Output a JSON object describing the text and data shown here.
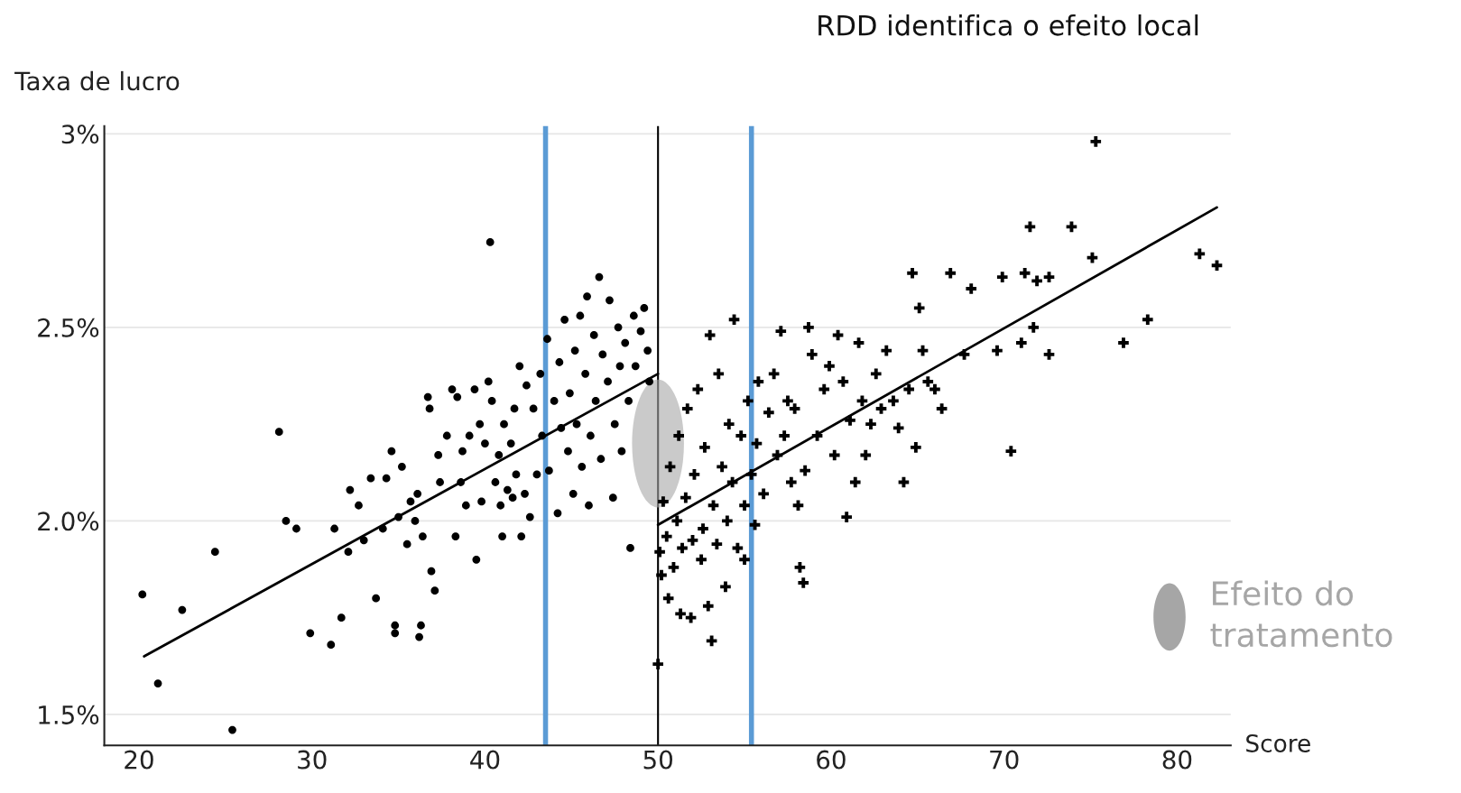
{
  "chart_data": {
    "type": "scatter",
    "title": "RDD identifica o efeito local",
    "xlabel": "Score",
    "ylabel": "Taxa de lucro",
    "annotations": [
      "Efeito do tratamento"
    ],
    "xlim": [
      18,
      83.1
    ],
    "xticks": [
      20,
      30,
      40,
      50,
      60,
      70,
      80
    ],
    "ylim": [
      1.42,
      3.02
    ],
    "yticks": [
      {
        "value": 1.5,
        "label": "1.5%"
      },
      {
        "value": 2.0,
        "label": "2.0%"
      },
      {
        "value": 2.5,
        "label": "2.5%"
      },
      {
        "value": 3,
        "label": "3%"
      }
    ],
    "grid": "y",
    "legend": false,
    "ref_lines": [
      {
        "axis": "x",
        "value": 50,
        "color": "#000000"
      },
      {
        "axis": "x",
        "value": 43.5,
        "color": "#5b9bd5"
      },
      {
        "axis": "x",
        "value": 55.4,
        "color": "#5b9bd5"
      }
    ],
    "series": [
      {
        "marker": "circle",
        "color": "#000000",
        "x": [
          20.2,
          21.1,
          22.5,
          24.4,
          25.4,
          28.1,
          28.5,
          29.1,
          29.9,
          31.1,
          31.3,
          31.7,
          32.2,
          32.7,
          32.1,
          33.0,
          33.4,
          33.7,
          34.1,
          34.3,
          34.6,
          34.8,
          34.8,
          35.0,
          35.2,
          35.5,
          35.7,
          35.96,
          36.1,
          36.3,
          36.2,
          36.4,
          36.7,
          36.8,
          36.9,
          37.1,
          37.3,
          37.4,
          37.8,
          38.1,
          38.3,
          38.4,
          38.6,
          38.7,
          38.9,
          39.1,
          39.4,
          39.5,
          39.7,
          39.8,
          40.0,
          40.2,
          40.3,
          40.4,
          40.6,
          40.8,
          40.9,
          41.0,
          41.1,
          41.3,
          41.5,
          41.6,
          41.7,
          41.8,
          42.0,
          42.1,
          42.3,
          42.4,
          42.6,
          42.8,
          43.0,
          43.2,
          43.3,
          43.6,
          43.7,
          44.0,
          44.2,
          44.3,
          44.4,
          44.6,
          44.8,
          44.9,
          45.1,
          45.2,
          45.3,
          45.5,
          45.6,
          45.8,
          45.9,
          46.0,
          46.1,
          46.3,
          46.4,
          46.6,
          46.7,
          46.8,
          47.1,
          47.2,
          47.4,
          47.5,
          47.7,
          47.8,
          47.9,
          48.1,
          48.3,
          48.4,
          48.6,
          48.7,
          49.0,
          49.2,
          49.4,
          49.5
        ],
        "values": [
          1.81,
          1.58,
          1.77,
          1.92,
          1.46,
          2.23,
          2.0,
          1.98,
          1.71,
          1.68,
          1.98,
          1.75,
          2.08,
          2.04,
          1.92,
          1.95,
          2.11,
          1.8,
          1.98,
          2.11,
          2.18,
          1.73,
          1.71,
          2.01,
          2.14,
          1.94,
          2.05,
          2.0,
          2.07,
          1.73,
          1.7,
          1.96,
          2.32,
          2.29,
          1.87,
          1.82,
          2.17,
          2.1,
          2.22,
          2.34,
          1.96,
          2.32,
          2.1,
          2.18,
          2.04,
          2.22,
          2.34,
          1.9,
          2.25,
          2.05,
          2.2,
          2.36,
          2.72,
          2.31,
          2.1,
          2.17,
          2.04,
          1.96,
          2.25,
          2.08,
          2.2,
          2.06,
          2.29,
          2.12,
          2.4,
          1.96,
          2.07,
          2.35,
          2.01,
          2.29,
          2.12,
          2.38,
          2.22,
          2.47,
          2.13,
          2.31,
          2.02,
          2.41,
          2.24,
          2.52,
          2.18,
          2.33,
          2.07,
          2.44,
          2.25,
          2.53,
          2.14,
          2.38,
          2.58,
          2.04,
          2.22,
          2.48,
          2.31,
          2.63,
          2.16,
          2.43,
          2.36,
          2.57,
          2.06,
          2.25,
          2.5,
          2.4,
          2.18,
          2.46,
          2.31,
          1.93,
          2.53,
          2.4,
          2.49,
          2.55,
          2.44,
          2.36
        ]
      },
      {
        "marker": "cross",
        "color": "#000000",
        "x": [
          50.0,
          50.1,
          50.2,
          50.3,
          50.5,
          50.6,
          50.7,
          50.9,
          51.1,
          51.2,
          51.3,
          51.4,
          51.6,
          51.7,
          51.9,
          52.0,
          52.1,
          52.3,
          52.5,
          52.6,
          52.7,
          52.9,
          53.0,
          53.1,
          53.2,
          53.4,
          53.5,
          53.7,
          53.9,
          54.0,
          54.1,
          54.3,
          54.4,
          54.6,
          54.8,
          55.0,
          55.0,
          55.2,
          55.4,
          55.6,
          55.7,
          55.8,
          56.1,
          56.4,
          56.7,
          56.9,
          57.1,
          57.3,
          57.5,
          57.7,
          57.9,
          58.1,
          58.2,
          58.4,
          58.5,
          58.7,
          58.9,
          59.2,
          59.6,
          59.9,
          60.2,
          60.4,
          60.7,
          60.9,
          61.1,
          61.4,
          61.6,
          61.8,
          62.0,
          62.3,
          62.6,
          62.9,
          63.2,
          63.6,
          63.9,
          64.2,
          64.5,
          64.7,
          64.9,
          65.1,
          65.3,
          65.6,
          66.0,
          66.4,
          66.9,
          67.7,
          68.1,
          69.6,
          69.9,
          70.4,
          71.0,
          71.2,
          71.5,
          71.7,
          71.9,
          72.6,
          72.6,
          73.9,
          75.1,
          75.3,
          76.9,
          78.3,
          81.3,
          82.3
        ],
        "values": [
          1.63,
          1.92,
          1.86,
          2.05,
          1.96,
          1.8,
          2.14,
          1.88,
          2.0,
          2.22,
          1.76,
          1.93,
          2.06,
          2.29,
          1.75,
          1.95,
          2.12,
          2.34,
          1.9,
          1.98,
          2.19,
          1.78,
          2.48,
          1.69,
          2.04,
          1.94,
          2.38,
          2.14,
          1.83,
          2.0,
          2.25,
          2.1,
          2.52,
          1.93,
          2.22,
          2.04,
          1.9,
          2.31,
          2.12,
          1.99,
          2.2,
          2.36,
          2.07,
          2.28,
          2.38,
          2.17,
          2.49,
          2.22,
          2.31,
          2.1,
          2.29,
          2.04,
          1.88,
          1.84,
          2.13,
          2.5,
          2.43,
          2.22,
          2.34,
          2.4,
          2.17,
          2.48,
          2.36,
          2.01,
          2.26,
          2.1,
          2.46,
          2.31,
          2.17,
          2.25,
          2.38,
          2.29,
          2.44,
          2.31,
          2.24,
          2.1,
          2.34,
          2.64,
          2.19,
          2.55,
          2.44,
          2.36,
          2.34,
          2.29,
          2.64,
          2.43,
          2.6,
          2.44,
          2.63,
          2.18,
          2.46,
          2.64,
          2.76,
          2.5,
          2.62,
          2.63,
          2.43,
          2.76,
          2.68,
          2.98,
          2.46,
          2.52,
          2.69,
          2.66
        ]
      },
      {
        "type": "line",
        "color": "#000000",
        "x": [
          20.3,
          50
        ],
        "values": [
          1.65,
          2.38
        ]
      },
      {
        "type": "line",
        "color": "#000000",
        "x": [
          50,
          82.3
        ],
        "values": [
          1.99,
          2.81
        ]
      }
    ]
  }
}
